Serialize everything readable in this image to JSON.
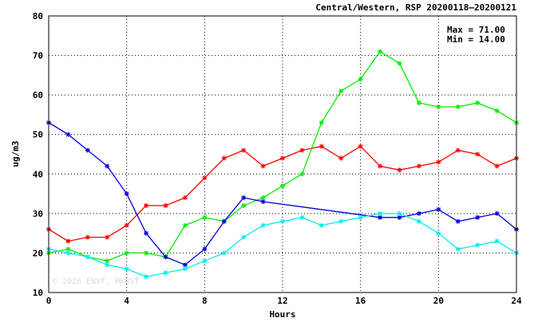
{
  "chart_data": {
    "type": "line",
    "title": "Central/Western, RSP 20200118–20200121",
    "xlabel": "Hours",
    "ylabel": "ug/m3",
    "xlim": [
      0,
      24
    ],
    "ylim": [
      10,
      80
    ],
    "xticks": [
      0,
      4,
      8,
      12,
      16,
      20,
      24
    ],
    "yticks": [
      10,
      20,
      30,
      40,
      50,
      60,
      70,
      80
    ],
    "grid": true,
    "max_label": "Max = 71.00",
    "min_label": "Min = 14.00",
    "watermark": "© 2026 ENVF, HKUST",
    "series": [
      {
        "color": "#ff0000",
        "points": [
          [
            0,
            26
          ],
          [
            1,
            23
          ],
          [
            2,
            24
          ],
          [
            3,
            24
          ],
          [
            4,
            27
          ],
          [
            5,
            32
          ],
          [
            6,
            32
          ],
          [
            7,
            34
          ],
          [
            8,
            39
          ],
          [
            9,
            44
          ],
          [
            10,
            46
          ],
          [
            11,
            42
          ],
          [
            12,
            44
          ],
          [
            13,
            46
          ],
          [
            14,
            47
          ],
          [
            15,
            44
          ],
          [
            16,
            47
          ],
          [
            17,
            42
          ],
          [
            18,
            41
          ],
          [
            19,
            42
          ],
          [
            20,
            43
          ],
          [
            21,
            46
          ],
          [
            22,
            45
          ],
          [
            23,
            42
          ],
          [
            24,
            44
          ]
        ]
      },
      {
        "color": "#00ee00",
        "points": [
          [
            0,
            20
          ],
          [
            1,
            21
          ],
          [
            2,
            19
          ],
          [
            3,
            18
          ],
          [
            4,
            20
          ],
          [
            5,
            20
          ],
          [
            6,
            19
          ],
          [
            7,
            27
          ],
          [
            8,
            29
          ],
          [
            9,
            28
          ],
          [
            10,
            32
          ],
          [
            11,
            34
          ],
          [
            12,
            37
          ],
          [
            13,
            40
          ],
          [
            14,
            53
          ],
          [
            15,
            61
          ],
          [
            16,
            64
          ],
          [
            17,
            71
          ],
          [
            18,
            68
          ],
          [
            19,
            58
          ],
          [
            20,
            57
          ],
          [
            21,
            57
          ],
          [
            22,
            58
          ],
          [
            23,
            56
          ],
          [
            24,
            53
          ]
        ]
      },
      {
        "color": "#0000dd",
        "points": [
          [
            0,
            53
          ],
          [
            1,
            50
          ],
          [
            2,
            46
          ],
          [
            3,
            42
          ],
          [
            4,
            35
          ],
          [
            5,
            25
          ],
          [
            6,
            19
          ],
          [
            7,
            17
          ],
          [
            8,
            21
          ],
          [
            9,
            28
          ],
          [
            10,
            34
          ],
          [
            11,
            33
          ],
          [
            17,
            29
          ],
          [
            18,
            29
          ],
          [
            19,
            30
          ],
          [
            20,
            31
          ],
          [
            21,
            28
          ],
          [
            22,
            29
          ],
          [
            23,
            30
          ],
          [
            24,
            26
          ]
        ]
      },
      {
        "color": "#00eeee",
        "points": [
          [
            0,
            21
          ],
          [
            1,
            20
          ],
          [
            2,
            19
          ],
          [
            3,
            17
          ],
          [
            4,
            16
          ],
          [
            5,
            14
          ],
          [
            6,
            15
          ],
          [
            7,
            16
          ],
          [
            8,
            18
          ],
          [
            9,
            20
          ],
          [
            10,
            24
          ],
          [
            11,
            27
          ],
          [
            12,
            28
          ],
          [
            13,
            29
          ],
          [
            14,
            27
          ],
          [
            15,
            28
          ],
          [
            16,
            29
          ],
          [
            17,
            30
          ],
          [
            18,
            30
          ],
          [
            19,
            28
          ],
          [
            20,
            25
          ],
          [
            21,
            21
          ],
          [
            22,
            22
          ],
          [
            23,
            23
          ],
          [
            24,
            20
          ]
        ]
      }
    ]
  }
}
